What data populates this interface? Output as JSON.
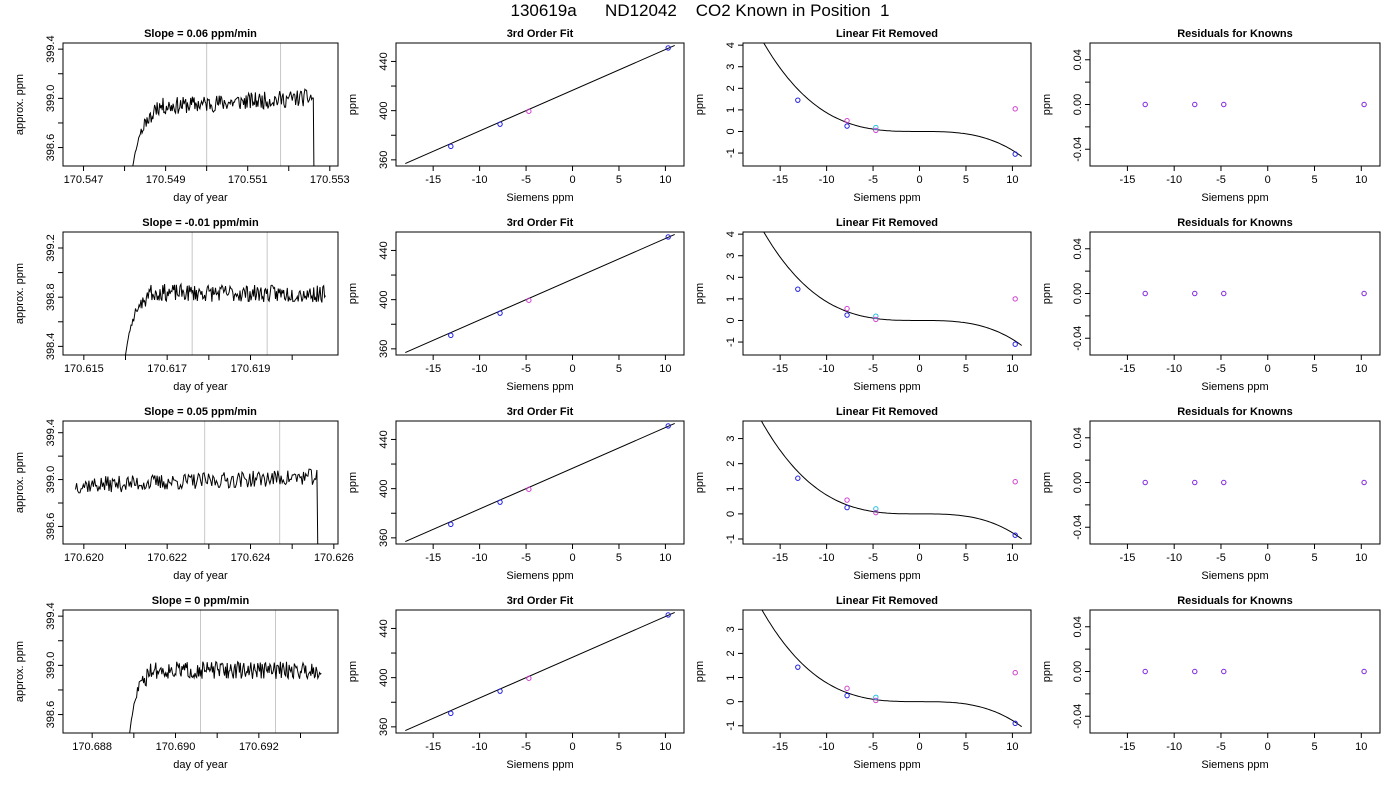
{
  "page": {
    "title": "130619a      ND12042    CO2 Known in Position  1"
  },
  "colors": {
    "line": "#000000",
    "frame": "#000000",
    "vline": "#c8c8c8",
    "point_blue": "#2020e0",
    "point_magenta": "#d040d0",
    "point_cyan": "#20c0e0",
    "point_purple": "#8020e0"
  },
  "chart_data": [
    {
      "type": "line",
      "title": "Slope =  0.06  ppm/min",
      "xlabel": "day of year",
      "ylabel": "approx. ppm",
      "xlim": [
        170.5465,
        170.5532
      ],
      "ylim": [
        398.45,
        399.45
      ],
      "xticks": [
        170.547,
        170.549,
        170.551,
        170.553
      ],
      "xtick_labels": [
        "170.547",
        "170.549",
        "170.551",
        "170.553"
      ],
      "minor_xticks": [
        170.548,
        170.55,
        170.552
      ],
      "yticks": [
        398.6,
        399.0,
        399.4
      ],
      "ytick_labels": [
        "398.6",
        "399.0",
        "399.4"
      ],
      "minor_yticks": [
        398.8,
        399.2
      ],
      "vlines": [
        170.55,
        170.5518
      ],
      "trace": {
        "t_start": 170.5482,
        "t_end": 170.5527,
        "rise_end": 170.5487,
        "base": 398.45,
        "level": 398.92,
        "drift": 0.06,
        "noise": 0.07,
        "seed": 11,
        "drop_at": 170.5526
      }
    },
    {
      "type": "scatter",
      "title": "3rd Order Fit",
      "xlabel": "Siemens ppm",
      "ylabel": "ppm",
      "xlim": [
        -19,
        12
      ],
      "ylim": [
        355,
        455
      ],
      "xticks": [
        -15,
        -10,
        -5,
        0,
        5,
        10
      ],
      "xtick_labels": [
        "-15",
        "-10",
        "-5",
        "0",
        "5",
        "10"
      ],
      "yticks": [
        360,
        400,
        440
      ],
      "ytick_labels": [
        "360",
        "400",
        "440"
      ],
      "minor_yticks": [
        380,
        420
      ],
      "fit": {
        "kind": "linear",
        "x0": -18,
        "y0": 357,
        "x1": 11,
        "y1": 453
      },
      "points": [
        {
          "x": -13.1,
          "y": 371,
          "color": "blue"
        },
        {
          "x": -7.8,
          "y": 389,
          "color": "blue"
        },
        {
          "x": -4.7,
          "y": 399.5,
          "color": "magenta"
        },
        {
          "x": 10.3,
          "y": 451,
          "color": "blue"
        }
      ]
    },
    {
      "type": "scatter",
      "title": "Linear Fit Removed",
      "xlabel": "Siemens ppm",
      "ylabel": "ppm",
      "xlim": [
        -19,
        12
      ],
      "ylim": [
        -1.6,
        4.1
      ],
      "xticks": [
        -15,
        -10,
        -5,
        0,
        5,
        10
      ],
      "xtick_labels": [
        "-15",
        "-10",
        "-5",
        "0",
        "5",
        "10"
      ],
      "yticks": [
        -1,
        0,
        1,
        2,
        3,
        4
      ],
      "ytick_labels": [
        "-1",
        "0",
        "1",
        "2",
        "3",
        "4"
      ],
      "fit": {
        "kind": "cubic",
        "x_from": -18,
        "x_to": 11,
        "c": -0.00087
      },
      "points": [
        {
          "x": -13.1,
          "y": 1.45,
          "color": "blue"
        },
        {
          "x": -7.8,
          "y": 0.25,
          "color": "blue"
        },
        {
          "x": -7.8,
          "y": 0.5,
          "color": "magenta"
        },
        {
          "x": -4.7,
          "y": 0.18,
          "color": "cyan"
        },
        {
          "x": -4.7,
          "y": 0.05,
          "color": "magenta"
        },
        {
          "x": 10.3,
          "y": 1.05,
          "color": "magenta"
        },
        {
          "x": 10.3,
          "y": -1.05,
          "color": "blue"
        }
      ]
    },
    {
      "type": "scatter",
      "title": "Residuals for Knowns",
      "xlabel": "Siemens ppm",
      "ylabel": "ppm",
      "xlim": [
        -19,
        12
      ],
      "ylim": [
        -0.055,
        0.055
      ],
      "xticks": [
        -15,
        -10,
        -5,
        0,
        5,
        10
      ],
      "xtick_labels": [
        "-15",
        "-10",
        "-5",
        "0",
        "5",
        "10"
      ],
      "yticks": [
        -0.04,
        0.0,
        0.04
      ],
      "ytick_labels": [
        "-0.04",
        "0.00",
        "0.04"
      ],
      "minor_yticks": [
        -0.02,
        0.02
      ],
      "points": [
        {
          "x": -13.1,
          "y": 0,
          "color": "purple"
        },
        {
          "x": -7.8,
          "y": 0,
          "color": "purple"
        },
        {
          "x": -4.7,
          "y": 0,
          "color": "purple"
        },
        {
          "x": 10.3,
          "y": 0,
          "color": "purple"
        }
      ]
    },
    {
      "type": "line",
      "title": "Slope =  -0.01  ppm/min",
      "xlabel": "day of year",
      "ylabel": "approx. ppm",
      "xlim": [
        170.6145,
        170.6211
      ],
      "ylim": [
        398.33,
        399.33
      ],
      "xticks": [
        170.615,
        170.617,
        170.619
      ],
      "xtick_labels": [
        "170.615",
        "170.617",
        "170.619"
      ],
      "minor_xticks": [
        170.616,
        170.618,
        170.62
      ],
      "yticks": [
        398.4,
        398.8,
        399.2
      ],
      "ytick_labels": [
        "398.4",
        "398.8",
        "399.2"
      ],
      "minor_yticks": [
        398.6,
        399.0
      ],
      "vlines": [
        170.6176,
        170.6194
      ],
      "trace": {
        "t_start": 170.616,
        "t_end": 170.6208,
        "rise_end": 170.6165,
        "base": 398.33,
        "level": 398.84,
        "drift": -0.01,
        "noise": 0.07,
        "seed": 23,
        "drop_at": null
      }
    },
    {
      "type": "scatter",
      "title": "3rd Order Fit",
      "xlabel": "Siemens ppm",
      "ylabel": "ppm",
      "xlim": [
        -19,
        12
      ],
      "ylim": [
        355,
        455
      ],
      "xticks": [
        -15,
        -10,
        -5,
        0,
        5,
        10
      ],
      "xtick_labels": [
        "-15",
        "-10",
        "-5",
        "0",
        "5",
        "10"
      ],
      "yticks": [
        360,
        400,
        440
      ],
      "ytick_labels": [
        "360",
        "400",
        "440"
      ],
      "minor_yticks": [
        380,
        420
      ],
      "fit": {
        "kind": "linear",
        "x0": -18,
        "y0": 357,
        "x1": 11,
        "y1": 453
      },
      "points": [
        {
          "x": -13.1,
          "y": 371,
          "color": "blue"
        },
        {
          "x": -7.8,
          "y": 389,
          "color": "blue"
        },
        {
          "x": -4.7,
          "y": 399.5,
          "color": "magenta"
        },
        {
          "x": 10.3,
          "y": 451,
          "color": "blue"
        }
      ]
    },
    {
      "type": "scatter",
      "title": "Linear Fit Removed",
      "xlabel": "Siemens ppm",
      "ylabel": "ppm",
      "xlim": [
        -19,
        12
      ],
      "ylim": [
        -1.6,
        4.1
      ],
      "xticks": [
        -15,
        -10,
        -5,
        0,
        5,
        10
      ],
      "xtick_labels": [
        "-15",
        "-10",
        "-5",
        "0",
        "5",
        "10"
      ],
      "yticks": [
        -1,
        0,
        1,
        2,
        3,
        4
      ],
      "ytick_labels": [
        "-1",
        "0",
        "1",
        "2",
        "3",
        "4"
      ],
      "fit": {
        "kind": "cubic",
        "x_from": -18,
        "x_to": 11,
        "c": -0.00087
      },
      "points": [
        {
          "x": -13.1,
          "y": 1.45,
          "color": "blue"
        },
        {
          "x": -7.8,
          "y": 0.25,
          "color": "blue"
        },
        {
          "x": -7.8,
          "y": 0.55,
          "color": "magenta"
        },
        {
          "x": -4.7,
          "y": 0.2,
          "color": "cyan"
        },
        {
          "x": -4.7,
          "y": 0.05,
          "color": "magenta"
        },
        {
          "x": 10.3,
          "y": 1.0,
          "color": "magenta"
        },
        {
          "x": 10.3,
          "y": -1.1,
          "color": "blue"
        }
      ]
    },
    {
      "type": "scatter",
      "title": "Residuals for Knowns",
      "xlabel": "Siemens ppm",
      "ylabel": "ppm",
      "xlim": [
        -19,
        12
      ],
      "ylim": [
        -0.055,
        0.055
      ],
      "xticks": [
        -15,
        -10,
        -5,
        0,
        5,
        10
      ],
      "xtick_labels": [
        "-15",
        "-10",
        "-5",
        "0",
        "5",
        "10"
      ],
      "yticks": [
        -0.04,
        0.0,
        0.04
      ],
      "ytick_labels": [
        "-0.04",
        "0.00",
        "0.04"
      ],
      "minor_yticks": [
        -0.02,
        0.02
      ],
      "points": [
        {
          "x": -13.1,
          "y": 0,
          "color": "purple"
        },
        {
          "x": -7.8,
          "y": 0,
          "color": "purple"
        },
        {
          "x": -4.7,
          "y": 0,
          "color": "purple"
        },
        {
          "x": 10.3,
          "y": 0,
          "color": "purple"
        }
      ]
    },
    {
      "type": "line",
      "title": "Slope =  0.05  ppm/min",
      "xlabel": "day of year",
      "ylabel": "approx. ppm",
      "xlim": [
        170.6195,
        170.6261
      ],
      "ylim": [
        398.45,
        399.5
      ],
      "xticks": [
        170.62,
        170.622,
        170.624,
        170.626
      ],
      "xtick_labels": [
        "170.620",
        "170.622",
        "170.624",
        "170.626"
      ],
      "minor_xticks": [
        170.621,
        170.623,
        170.625
      ],
      "yticks": [
        398.6,
        399.0,
        399.4
      ],
      "ytick_labels": [
        "398.6",
        "399.0",
        "399.4"
      ],
      "minor_yticks": [
        398.8,
        399.2
      ],
      "vlines": [
        170.6229,
        170.6247
      ],
      "trace": {
        "t_start": 170.6198,
        "t_end": 170.6257,
        "rise_end": null,
        "base": 398.45,
        "level": 398.95,
        "drift": 0.05,
        "noise": 0.07,
        "seed": 37,
        "drop_at": 170.6256
      }
    },
    {
      "type": "scatter",
      "title": "3rd Order Fit",
      "xlabel": "Siemens ppm",
      "ylabel": "ppm",
      "xlim": [
        -19,
        12
      ],
      "ylim": [
        355,
        455
      ],
      "xticks": [
        -15,
        -10,
        -5,
        0,
        5,
        10
      ],
      "xtick_labels": [
        "-15",
        "-10",
        "-5",
        "0",
        "5",
        "10"
      ],
      "yticks": [
        360,
        400,
        440
      ],
      "ytick_labels": [
        "360",
        "400",
        "440"
      ],
      "minor_yticks": [
        380,
        420
      ],
      "fit": {
        "kind": "linear",
        "x0": -18,
        "y0": 357,
        "x1": 11,
        "y1": 453
      },
      "points": [
        {
          "x": -13.1,
          "y": 371,
          "color": "blue"
        },
        {
          "x": -7.8,
          "y": 389,
          "color": "blue"
        },
        {
          "x": -4.7,
          "y": 399.5,
          "color": "magenta"
        },
        {
          "x": 10.3,
          "y": 451,
          "color": "blue"
        }
      ]
    },
    {
      "type": "scatter",
      "title": "Linear Fit Removed",
      "xlabel": "Siemens ppm",
      "ylabel": "ppm",
      "xlim": [
        -19,
        12
      ],
      "ylim": [
        -1.2,
        3.7
      ],
      "xticks": [
        -15,
        -10,
        -5,
        0,
        5,
        10
      ],
      "xtick_labels": [
        "-15",
        "-10",
        "-5",
        "0",
        "5",
        "10"
      ],
      "yticks": [
        -1,
        0,
        1,
        2,
        3
      ],
      "ytick_labels": [
        "-1",
        "0",
        "1",
        "2",
        "3"
      ],
      "fit": {
        "kind": "cubic",
        "x_from": -18,
        "x_to": 11,
        "c": -0.00075
      },
      "points": [
        {
          "x": -13.1,
          "y": 1.42,
          "color": "blue"
        },
        {
          "x": -7.8,
          "y": 0.25,
          "color": "blue"
        },
        {
          "x": -7.8,
          "y": 0.55,
          "color": "magenta"
        },
        {
          "x": -4.7,
          "y": 0.2,
          "color": "cyan"
        },
        {
          "x": -4.7,
          "y": 0.05,
          "color": "magenta"
        },
        {
          "x": 10.3,
          "y": 1.28,
          "color": "magenta"
        },
        {
          "x": 10.3,
          "y": -0.85,
          "color": "blue"
        }
      ]
    },
    {
      "type": "scatter",
      "title": "Residuals for Knowns",
      "xlabel": "Siemens ppm",
      "ylabel": "ppm",
      "xlim": [
        -19,
        12
      ],
      "ylim": [
        -0.055,
        0.055
      ],
      "xticks": [
        -15,
        -10,
        -5,
        0,
        5,
        10
      ],
      "xtick_labels": [
        "-15",
        "-10",
        "-5",
        "0",
        "5",
        "10"
      ],
      "yticks": [
        -0.04,
        0.0,
        0.04
      ],
      "ytick_labels": [
        "-0.04",
        "0.00",
        "0.04"
      ],
      "minor_yticks": [
        -0.02,
        0.02
      ],
      "points": [
        {
          "x": -13.1,
          "y": 0,
          "color": "purple"
        },
        {
          "x": -7.8,
          "y": 0,
          "color": "purple"
        },
        {
          "x": -4.7,
          "y": 0,
          "color": "purple"
        },
        {
          "x": 10.3,
          "y": 0,
          "color": "purple"
        }
      ]
    },
    {
      "type": "line",
      "title": "Slope =  0  ppm/min",
      "xlabel": "day of year",
      "ylabel": "approx. ppm",
      "xlim": [
        170.6873,
        170.6939
      ],
      "ylim": [
        398.45,
        399.45
      ],
      "xticks": [
        170.688,
        170.69,
        170.692
      ],
      "xtick_labels": [
        "170.688",
        "170.690",
        "170.692"
      ],
      "minor_xticks": [
        170.689,
        170.691,
        170.693
      ],
      "yticks": [
        398.6,
        399.0,
        399.4
      ],
      "ytick_labels": [
        "398.6",
        "399.0",
        "399.4"
      ],
      "minor_yticks": [
        398.8,
        399.2
      ],
      "vlines": [
        170.6906,
        170.6924
      ],
      "trace": {
        "t_start": 170.6889,
        "t_end": 170.6935,
        "rise_end": 170.6893,
        "base": 398.45,
        "level": 398.96,
        "drift": 0.0,
        "noise": 0.07,
        "seed": 51,
        "drop_at": null
      }
    },
    {
      "type": "scatter",
      "title": "3rd Order Fit",
      "xlabel": "Siemens ppm",
      "ylabel": "ppm",
      "xlim": [
        -19,
        12
      ],
      "ylim": [
        355,
        455
      ],
      "xticks": [
        -15,
        -10,
        -5,
        0,
        5,
        10
      ],
      "xtick_labels": [
        "-15",
        "-10",
        "-5",
        "0",
        "5",
        "10"
      ],
      "yticks": [
        360,
        400,
        440
      ],
      "ytick_labels": [
        "360",
        "400",
        "440"
      ],
      "minor_yticks": [
        380,
        420
      ],
      "fit": {
        "kind": "linear",
        "x0": -18,
        "y0": 357,
        "x1": 11,
        "y1": 453
      },
      "points": [
        {
          "x": -13.1,
          "y": 371,
          "color": "blue"
        },
        {
          "x": -7.8,
          "y": 389,
          "color": "blue"
        },
        {
          "x": -4.7,
          "y": 399.5,
          "color": "magenta"
        },
        {
          "x": 10.3,
          "y": 451,
          "color": "blue"
        }
      ]
    },
    {
      "type": "scatter",
      "title": "Linear Fit Removed",
      "xlabel": "Siemens ppm",
      "ylabel": "ppm",
      "xlim": [
        -19,
        12
      ],
      "ylim": [
        -1.3,
        3.8
      ],
      "xticks": [
        -15,
        -10,
        -5,
        0,
        5,
        10
      ],
      "xtick_labels": [
        "-15",
        "-10",
        "-5",
        "0",
        "5",
        "10"
      ],
      "yticks": [
        -1,
        0,
        1,
        2,
        3
      ],
      "ytick_labels": [
        "-1",
        "0",
        "1",
        "2",
        "3"
      ],
      "fit": {
        "kind": "cubic",
        "x_from": -18,
        "x_to": 11,
        "c": -0.00078
      },
      "points": [
        {
          "x": -13.1,
          "y": 1.43,
          "color": "blue"
        },
        {
          "x": -7.8,
          "y": 0.25,
          "color": "blue"
        },
        {
          "x": -7.8,
          "y": 0.55,
          "color": "magenta"
        },
        {
          "x": -4.7,
          "y": 0.18,
          "color": "cyan"
        },
        {
          "x": -4.7,
          "y": 0.05,
          "color": "magenta"
        },
        {
          "x": 10.3,
          "y": 1.2,
          "color": "magenta"
        },
        {
          "x": 10.3,
          "y": -0.9,
          "color": "blue"
        }
      ]
    },
    {
      "type": "scatter",
      "title": "Residuals for Knowns",
      "xlabel": "Siemens ppm",
      "ylabel": "ppm",
      "xlim": [
        -19,
        12
      ],
      "ylim": [
        -0.055,
        0.055
      ],
      "xticks": [
        -15,
        -10,
        -5,
        0,
        5,
        10
      ],
      "xtick_labels": [
        "-15",
        "-10",
        "-5",
        "0",
        "5",
        "10"
      ],
      "yticks": [
        -0.04,
        0.0,
        0.04
      ],
      "ytick_labels": [
        "-0.04",
        "0.00",
        "0.04"
      ],
      "minor_yticks": [
        -0.02,
        0.02
      ],
      "points": [
        {
          "x": -13.1,
          "y": 0,
          "color": "purple"
        },
        {
          "x": -7.8,
          "y": 0,
          "color": "purple"
        },
        {
          "x": -4.7,
          "y": 0,
          "color": "purple"
        },
        {
          "x": 10.3,
          "y": 0,
          "color": "purple"
        }
      ]
    }
  ]
}
